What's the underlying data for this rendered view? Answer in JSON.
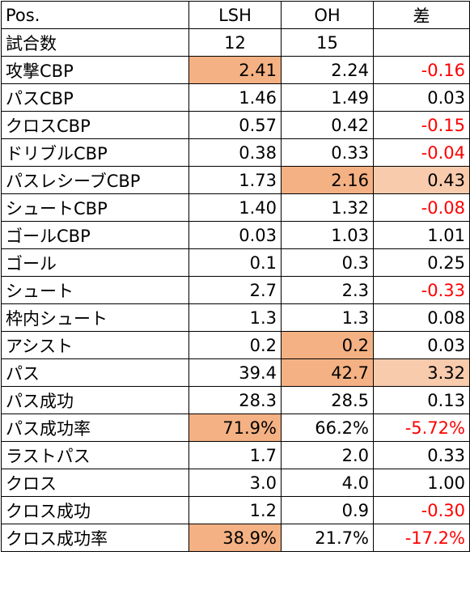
{
  "header": [
    "Pos.",
    "LSH",
    "OH",
    "差"
  ],
  "games_row": [
    "試合数",
    "12",
    "15",
    ""
  ],
  "rows": [
    [
      "攻撃CBP",
      "2.41",
      "2.24",
      "-0.16"
    ],
    [
      "パスCBP",
      "1.46",
      "1.49",
      "0.03"
    ],
    [
      "クロスCBP",
      "0.57",
      "0.42",
      "-0.15"
    ],
    [
      "ドリブルCBP",
      "0.38",
      "0.33",
      "-0.04"
    ],
    [
      "パスレシーブCBP",
      "1.73",
      "2.16",
      "0.43"
    ],
    [
      "シュートCBP",
      "1.40",
      "1.32",
      "-0.08"
    ],
    [
      "ゴールCBP",
      "0.03",
      "1.03",
      "1.01"
    ],
    [
      "ゴール",
      "0.1",
      "0.3",
      "0.25"
    ],
    [
      "シュート",
      "2.7",
      "2.3",
      "-0.33"
    ],
    [
      "枠内シュート",
      "1.3",
      "1.3",
      "0.08"
    ],
    [
      "アシスト",
      "0.2",
      "0.2",
      "0.03"
    ],
    [
      "パス",
      "39.4",
      "42.7",
      "3.32"
    ],
    [
      "パス成功",
      "28.3",
      "28.5",
      "0.13"
    ],
    [
      "パス成功率",
      "71.9%",
      "66.2%",
      "-5.72%"
    ],
    [
      "ラストパス",
      "1.7",
      "2.0",
      "0.33"
    ],
    [
      "クロス",
      "3.0",
      "4.0",
      "1.00"
    ],
    [
      "クロス成功",
      "1.2",
      "0.9",
      "-0.30"
    ],
    [
      "クロス成功率",
      "38.9%",
      "21.7%",
      "-17.2%"
    ]
  ],
  "colors": {
    "highlight_dark": "#f4b183",
    "highlight_light": "#f8cbad",
    "negative_text": "#ff0000",
    "border": "#000000"
  }
}
